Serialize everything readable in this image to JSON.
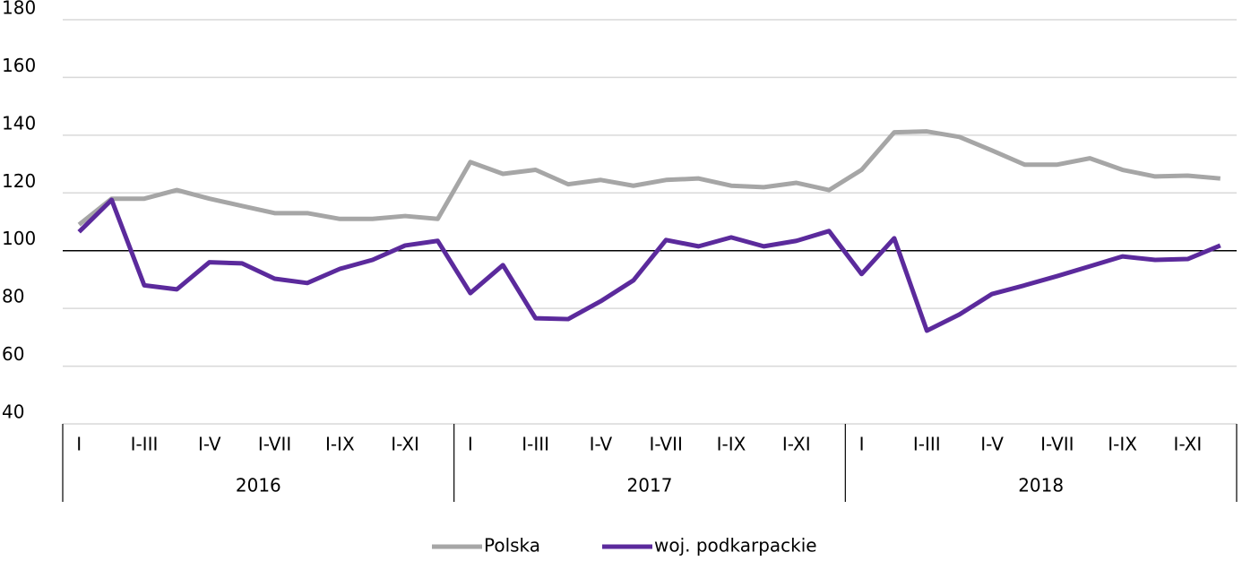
{
  "chart_data": {
    "type": "line",
    "categories": [
      "I",
      null,
      "I-III",
      null,
      "I-V",
      null,
      "I-VII",
      null,
      "I-IX",
      null,
      "I-XI",
      null,
      "I",
      null,
      "I-III",
      null,
      "I-V",
      null,
      "I-VII",
      null,
      "I-IX",
      null,
      "I-XI",
      null,
      "I",
      null,
      "I-III",
      null,
      "I-V",
      null,
      "I-VII",
      null,
      "I-IX",
      null,
      "I-XI",
      null
    ],
    "groups": [
      "2016",
      "2017",
      "2018"
    ],
    "series": [
      {
        "name": "Polska",
        "color": "#a6a6a6",
        "values": [
          109,
          118,
          118,
          121,
          118,
          115.5,
          113,
          113,
          111,
          111,
          112,
          111,
          130.7,
          126.6,
          128,
          123,
          124.5,
          122.5,
          124.5,
          125,
          122.5,
          122,
          123.5,
          121,
          128,
          141,
          141.3,
          139.4,
          134.7,
          129.8,
          129.8,
          132,
          128,
          125.7,
          126,
          125
        ]
      },
      {
        "name": "woj. podkarpackie",
        "color": "#5b2a9c",
        "values": [
          106.5,
          117.6,
          88,
          86.6,
          96,
          95.6,
          90.3,
          88.8,
          93.7,
          96.8,
          101.8,
          103.4,
          85.3,
          95,
          76.6,
          76.3,
          82.5,
          89.7,
          103.7,
          101.5,
          104.6,
          101.5,
          103.4,
          106.8,
          91.9,
          104.3,
          72.3,
          77.9,
          85,
          88,
          91.2,
          94.6,
          98,
          96.8,
          97.1,
          101.8
        ]
      }
    ],
    "ylim": [
      40,
      180
    ],
    "yticks": [
      40,
      60,
      80,
      100,
      120,
      140,
      160,
      180
    ],
    "reference_line": 100,
    "grid": true,
    "legend": "bottom"
  }
}
